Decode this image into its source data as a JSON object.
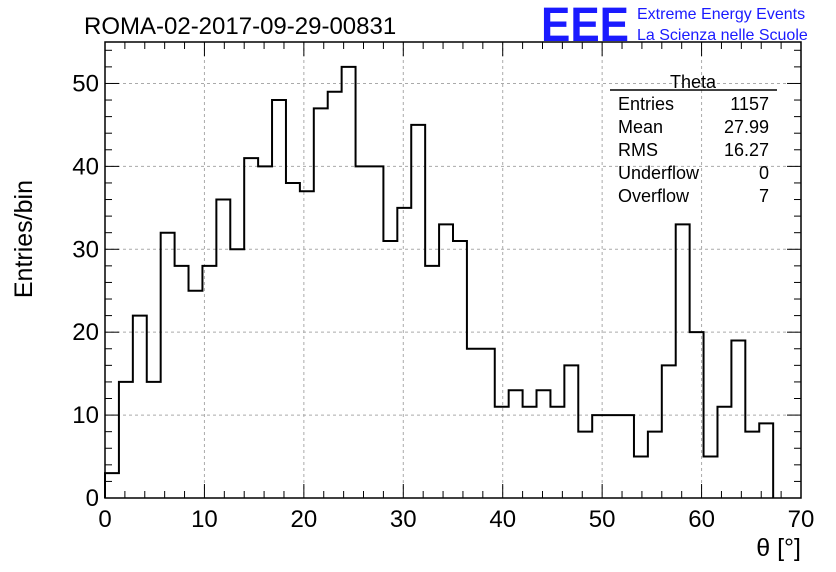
{
  "chart_data": {
    "type": "bar",
    "histogram_style": "step",
    "title": "ROMA-02-2017-09-29-00831",
    "xlabel": "θ [°]",
    "ylabel": "Entries/bin",
    "xlim": [
      0,
      70
    ],
    "ylim": [
      0,
      55
    ],
    "grid": true,
    "line_color": "#000000",
    "bin_edges": [
      0,
      1.4,
      2.8,
      4.2,
      5.6,
      7.0,
      8.4,
      9.8,
      11.2,
      12.6,
      14.0,
      15.4,
      16.8,
      18.2,
      19.6,
      21.0,
      22.4,
      23.8,
      25.2,
      26.6,
      28.0,
      29.4,
      30.8,
      32.2,
      33.6,
      35.0,
      36.4,
      37.8,
      39.2,
      40.6,
      42.0,
      43.4,
      44.8,
      46.2,
      47.6,
      49.0,
      50.4,
      51.8,
      53.2,
      54.6,
      56.0,
      57.4,
      58.8,
      60.2,
      61.6,
      63.0,
      64.4,
      65.8,
      67.2
    ],
    "values": [
      3,
      14,
      22,
      14,
      32,
      28,
      25,
      28,
      36,
      30,
      41,
      40,
      48,
      38,
      37,
      47,
      49,
      52,
      40,
      40,
      31,
      35,
      45,
      28,
      33,
      31,
      18,
      18,
      11,
      13,
      11,
      13,
      11,
      16,
      8,
      10,
      10,
      10,
      5,
      8,
      16,
      33,
      20,
      5,
      11,
      19,
      8,
      9
    ],
    "x_ticks": [
      "0",
      "10",
      "20",
      "30",
      "40",
      "50",
      "60",
      "70"
    ],
    "y_ticks": [
      "0",
      "10",
      "20",
      "30",
      "40",
      "50"
    ],
    "stats_box": {
      "name": "Theta",
      "rows": [
        {
          "label": "Entries",
          "value": "1157"
        },
        {
          "label": "Mean",
          "value": "27.99"
        },
        {
          "label": "RMS",
          "value": "16.27"
        },
        {
          "label": "Underflow",
          "value": "0"
        },
        {
          "label": "Overflow",
          "value": "7"
        }
      ],
      "legend_position": "top-right"
    }
  },
  "logo": {
    "text": "EEE",
    "line1": "Extreme Energy Events",
    "line2": "La Scienza nelle Scuole",
    "color": "#1a1aff"
  }
}
